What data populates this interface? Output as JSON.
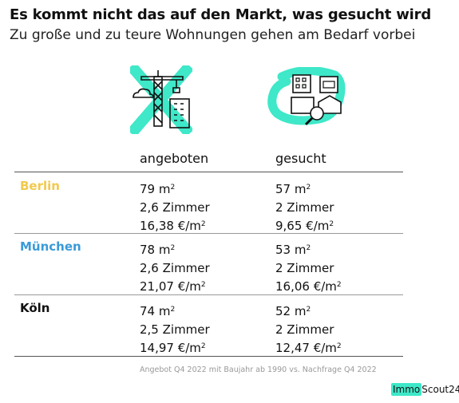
{
  "header": {
    "title": "Es kommt nicht das auf den Markt, was gesucht wird",
    "subtitle": "Zu große und zu teure Wohnungen gehen am Bedarf vorbei"
  },
  "icons": {
    "left": "crane-buildings-crossed-icon",
    "right": "search-apartments-icon",
    "accent": "#3ee8c8"
  },
  "table": {
    "columns": [
      "angeboten",
      "gesucht"
    ],
    "rows": [
      {
        "city": "Berlin",
        "color": "#f2c94c",
        "offered": {
          "area": "79 m",
          "rooms": "2,6 Zimmer",
          "price": "16,38 €/m"
        },
        "wanted": {
          "area": "57 m",
          "rooms": "2 Zimmer",
          "price": "9,65 €/m"
        }
      },
      {
        "city": "München",
        "color": "#3a9ad9",
        "offered": {
          "area": "78 m",
          "rooms": "2,6 Zimmer",
          "price": "21,07 €/m"
        },
        "wanted": {
          "area": "53 m",
          "rooms": "2 Zimmer",
          "price": "16,06 €/m"
        }
      },
      {
        "city": "Köln",
        "color": "#111111",
        "offered": {
          "area": "74 m",
          "rooms": "2,5 Zimmer",
          "price": "14,97 €/m"
        },
        "wanted": {
          "area": "52 m",
          "rooms": "2 Zimmer",
          "price": "12,47 €/m"
        }
      }
    ],
    "superscript": "2"
  },
  "footer": {
    "source": "Angebot Q4 2022 mit Baujahr ab 1990 vs. Nachfrage Q4 2022",
    "brand_part1": "Immo",
    "brand_part2": "Scout24"
  }
}
